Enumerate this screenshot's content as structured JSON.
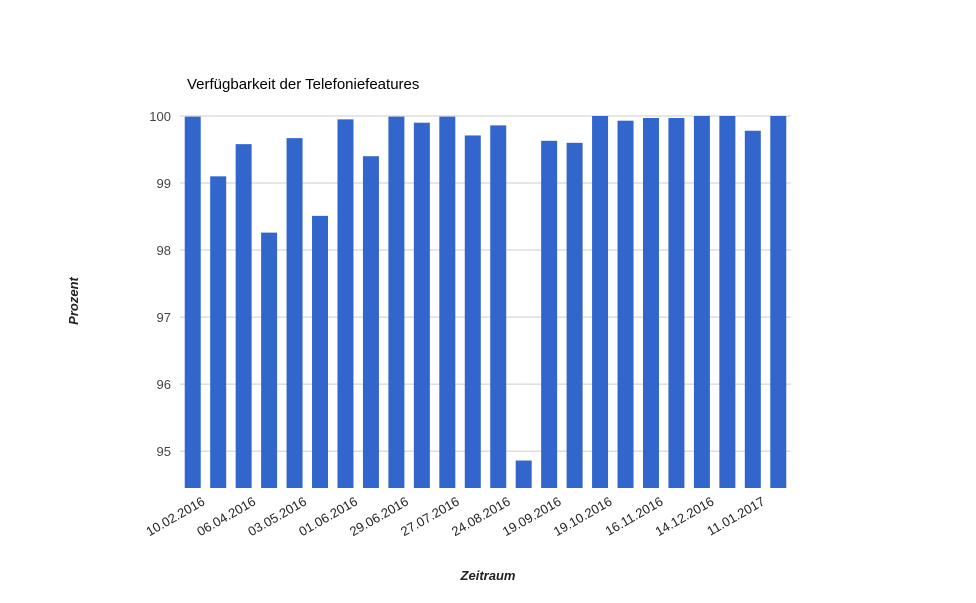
{
  "chart_data": {
    "type": "bar",
    "title": "Verfügbarkeit der Telefoniefeatures",
    "xlabel": "Zeitraum",
    "ylabel": "Prozent",
    "ylim": [
      94.45,
      100
    ],
    "yticks": [
      95,
      96,
      97,
      98,
      99,
      100
    ],
    "grid": true,
    "legend": "none",
    "bar_color": "#3366cc",
    "tick_labels": [
      "10.02.2016",
      "06.04.2016",
      "03.05.2016",
      "01.06.2016",
      "29.06.2016",
      "27.07.2016",
      "24.08.2016",
      "19.09.2016",
      "19.10.2016",
      "16.11.2016",
      "14.12.2016",
      "11.01.2017"
    ],
    "values": [
      99.99,
      99.1,
      99.58,
      98.26,
      99.67,
      98.51,
      99.95,
      99.4,
      99.99,
      99.9,
      99.99,
      99.71,
      99.86,
      94.86,
      99.63,
      99.6,
      100,
      99.93,
      99.97,
      99.97,
      100,
      100,
      99.78,
      100
    ]
  }
}
